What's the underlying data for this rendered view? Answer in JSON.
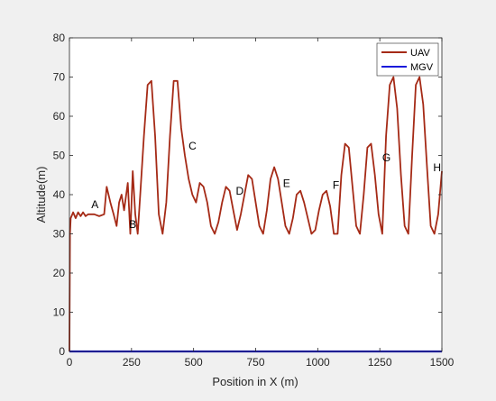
{
  "chart_data": {
    "type": "line",
    "xlabel": "Position in X (m)",
    "ylabel": "Altitude(m)",
    "xlim": [
      0,
      1500
    ],
    "ylim": [
      0,
      80
    ],
    "x_ticks": [
      0,
      250,
      500,
      750,
      1000,
      1250,
      1500
    ],
    "y_ticks": [
      0,
      10,
      20,
      30,
      40,
      50,
      60,
      70,
      80
    ],
    "grid": false,
    "legend_position": "top-right",
    "series": [
      {
        "name": "UAV",
        "color": "#a52a16",
        "x": [
          0,
          2,
          5,
          15,
          25,
          35,
          45,
          55,
          65,
          75,
          85,
          100,
          120,
          140,
          150,
          165,
          178,
          190,
          200,
          210,
          220,
          235,
          245,
          255,
          265,
          275,
          285,
          300,
          315,
          330,
          345,
          360,
          375,
          390,
          405,
          420,
          435,
          450,
          465,
          480,
          495,
          510,
          525,
          540,
          555,
          570,
          585,
          600,
          615,
          630,
          645,
          660,
          675,
          690,
          705,
          720,
          735,
          750,
          765,
          780,
          795,
          810,
          825,
          840,
          855,
          870,
          885,
          900,
          915,
          930,
          945,
          960,
          975,
          990,
          1005,
          1020,
          1035,
          1050,
          1065,
          1080,
          1095,
          1110,
          1125,
          1140,
          1155,
          1170,
          1185,
          1200,
          1215,
          1230,
          1245,
          1260,
          1275,
          1290,
          1305,
          1320,
          1335,
          1350,
          1365,
          1380,
          1395,
          1410,
          1425,
          1440,
          1455,
          1470,
          1485,
          1500
        ],
        "y": [
          0,
          30,
          34,
          35.5,
          34,
          35.5,
          34.5,
          35.5,
          34.5,
          35,
          35,
          35,
          34.5,
          35,
          42,
          38,
          35,
          32,
          38,
          40,
          36,
          43,
          30,
          46,
          35,
          30,
          40,
          55,
          68,
          69,
          55,
          35,
          30,
          38,
          55,
          69,
          69,
          57,
          50,
          44,
          40,
          38,
          43,
          42,
          38,
          32,
          30,
          33,
          38,
          42,
          41,
          36,
          31,
          35,
          40,
          45,
          44,
          38,
          32,
          30,
          36,
          44,
          47,
          44,
          38,
          32,
          30,
          34,
          40,
          41,
          38,
          34,
          30,
          31,
          36,
          40,
          41,
          37,
          30,
          30,
          45,
          53,
          52,
          42,
          32,
          30,
          40,
          52,
          53,
          45,
          35,
          30,
          55,
          68,
          70,
          62,
          45,
          32,
          30,
          50,
          68,
          70,
          63,
          47,
          32,
          30,
          35,
          46
        ]
      },
      {
        "name": "MGV",
        "color": "#1a1adb",
        "x": [
          0,
          1500
        ],
        "y": [
          0,
          0
        ]
      }
    ],
    "annotations": [
      {
        "text": "A",
        "x": 88,
        "y": 36.5
      },
      {
        "text": "B",
        "x": 240,
        "y": 31.5
      },
      {
        "text": "C",
        "x": 480,
        "y": 51.5
      },
      {
        "text": "D",
        "x": 670,
        "y": 40
      },
      {
        "text": "E",
        "x": 860,
        "y": 42
      },
      {
        "text": "F",
        "x": 1060,
        "y": 41.5
      },
      {
        "text": "G",
        "x": 1260,
        "y": 48.5
      },
      {
        "text": "H",
        "x": 1465,
        "y": 46
      }
    ]
  }
}
